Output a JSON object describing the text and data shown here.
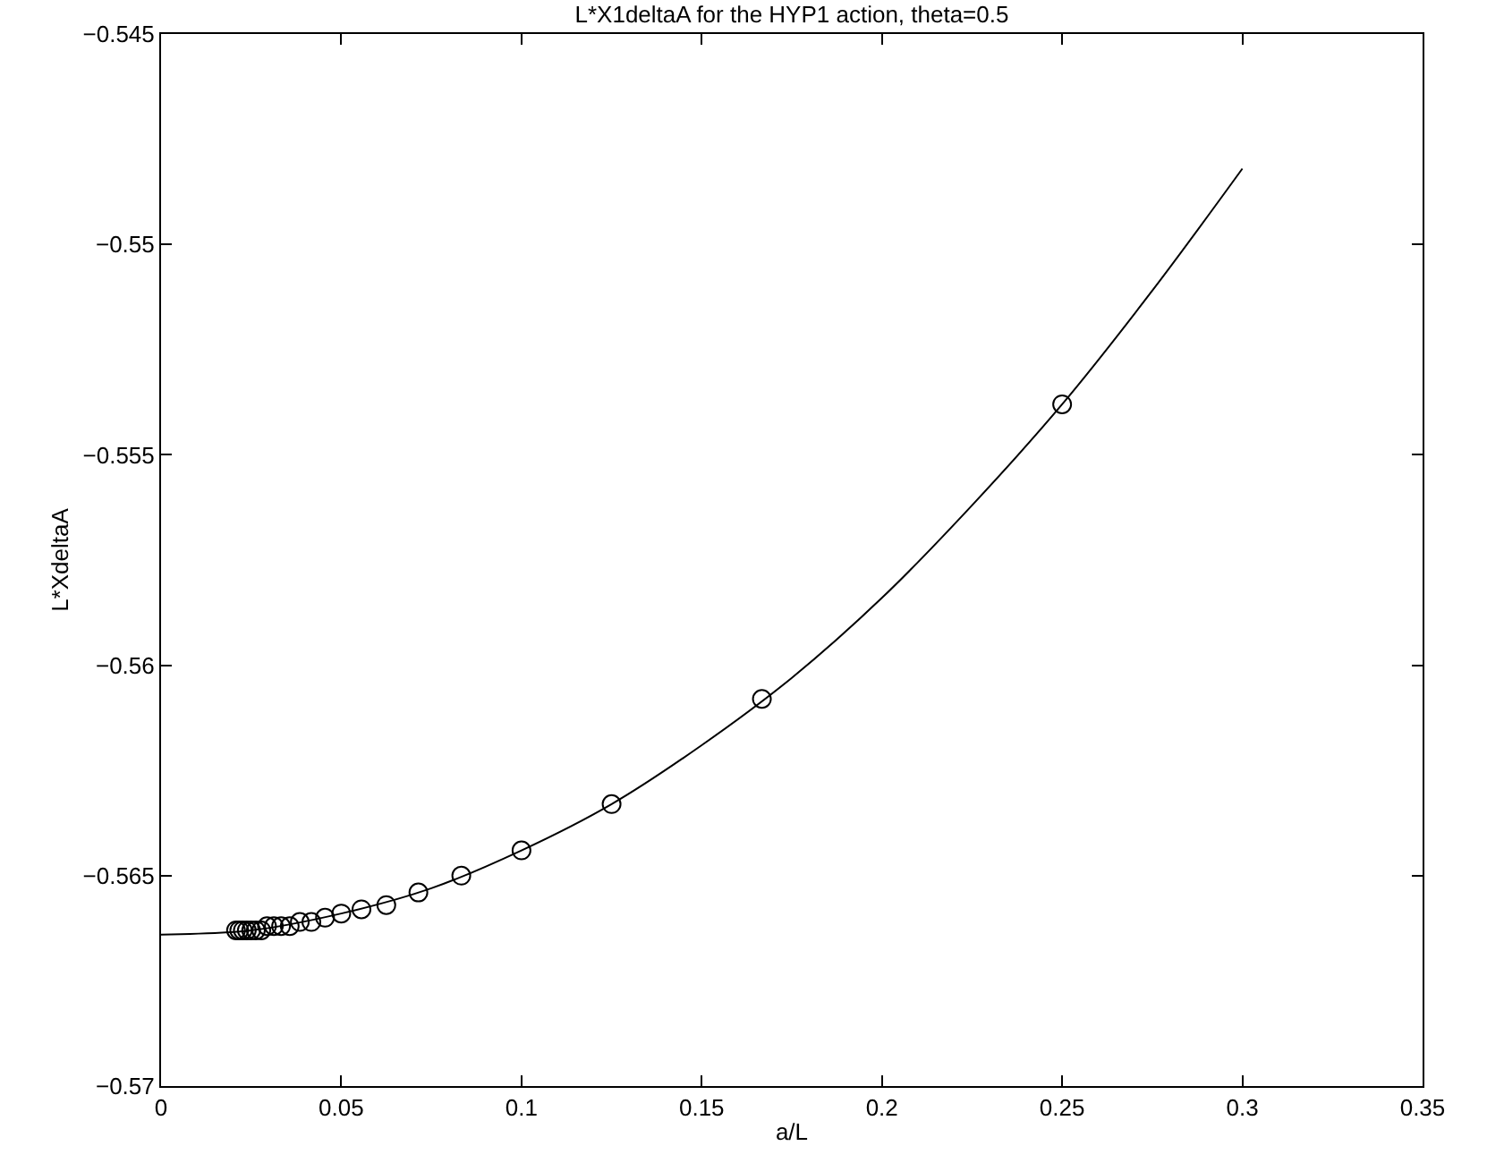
{
  "chart_data": {
    "type": "scatter",
    "title": "L*X1deltaA for the HYP1 action, theta=0.5",
    "xlabel": "a/L",
    "ylabel": "L*XdeltaA",
    "xlim": [
      0,
      0.35
    ],
    "xticks": [
      0,
      0.05,
      0.1,
      0.15,
      0.2,
      0.25,
      0.3,
      0.35
    ],
    "ylim": [
      -0.57,
      -0.545
    ],
    "yticks": [
      -0.57,
      -0.565,
      -0.56,
      -0.555,
      -0.55,
      -0.545
    ],
    "series": [
      {
        "type": "line",
        "color": "#000000",
        "marker": "none",
        "line_style": "solid",
        "x": [
          0,
          0.025,
          0.05,
          0.075,
          0.1,
          0.125,
          0.15,
          0.175,
          0.2,
          0.225,
          0.25,
          0.275,
          0.3
        ],
        "values": [
          -0.5664,
          -0.5663,
          -0.5659,
          -0.5653,
          -0.5644,
          -0.5633,
          -0.5619,
          -0.5603,
          -0.5584,
          -0.5562,
          -0.5538,
          -0.5511,
          -0.5482
        ]
      },
      {
        "color": "#000000",
        "marker": "circle",
        "x": [
          0.25,
          0.1667,
          0.125,
          0.1,
          0.0833,
          0.0714,
          0.0625,
          0.0556,
          0.05,
          0.0455,
          0.0417,
          0.0385,
          0.0357,
          0.0333,
          0.0313,
          0.0294,
          0.0278,
          0.0263,
          0.025,
          0.0238,
          0.0227,
          0.0217,
          0.0208
        ],
        "values": [
          -0.5538,
          -0.5608,
          -0.5633,
          -0.5644,
          -0.565,
          -0.5654,
          -0.5657,
          -0.5658,
          -0.5659,
          -0.566,
          -0.5661,
          -0.5661,
          -0.5662,
          -0.5662,
          -0.5662,
          -0.5662,
          -0.5663,
          -0.5663,
          -0.5663,
          -0.5663,
          -0.5663,
          -0.5663,
          -0.5663
        ]
      }
    ]
  }
}
